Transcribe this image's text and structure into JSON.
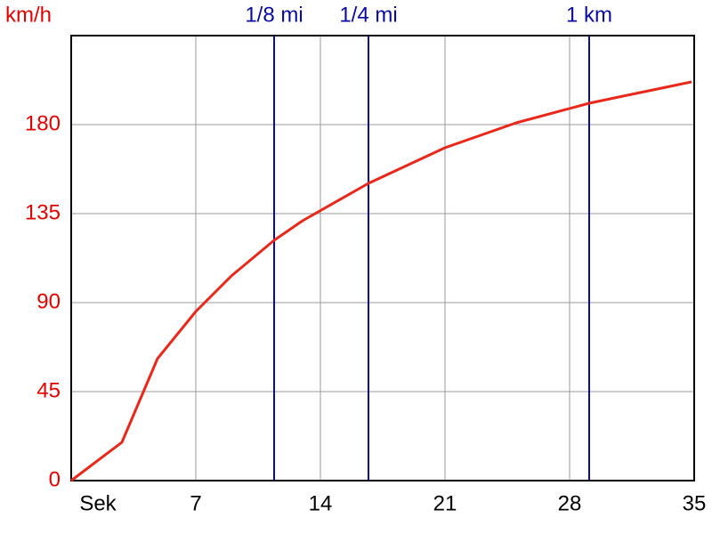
{
  "chart_data": {
    "type": "line",
    "y_label": "km/h",
    "x": [
      0,
      2.85,
      4.85,
      7,
      9,
      11.4,
      13,
      16.7,
      21,
      25,
      29.1,
      31,
      34.85
    ],
    "series": [
      {
        "color": "#e8281a",
        "values": [
          0,
          19.4,
          61.7,
          85.5,
          103.5,
          121.5,
          131.4,
          150.3,
          168.3,
          180.9,
          190.8,
          194.4,
          201.6
        ]
      }
    ],
    "xlim": [
      0,
      35
    ],
    "xticks": [
      {
        "value": 0,
        "label": "Sek"
      },
      7,
      14,
      21,
      28,
      35
    ],
    "ylim": [
      0,
      225
    ],
    "yticks": [
      0,
      45,
      90,
      135,
      180
    ],
    "grid": true,
    "markers": [
      {
        "label": "1/8 mi",
        "x": 11.4
      },
      {
        "label": "1/4 mi",
        "x": 16.7
      },
      {
        "label": "1 km",
        "x": 29.1
      }
    ],
    "marker_color": "#0a0aa0"
  }
}
